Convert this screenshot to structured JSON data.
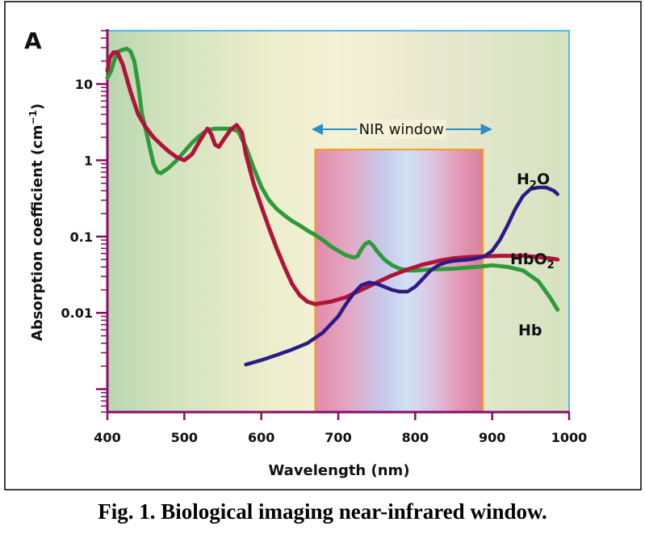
{
  "panel_label": "A",
  "caption": "Fig. 1.  Biological imaging near-infrared window.",
  "nir_label": "NIR window",
  "chart_data": {
    "type": "line",
    "x_label": "Wavelength (nm)",
    "y_label_main": "Absorption coefficient (cm",
    "y_label_sup": "−1",
    "y_label_end": ")",
    "y_scale": "log",
    "xlim": [
      400,
      1000
    ],
    "ylim": [
      0.0005,
      50
    ],
    "x_ticks": [
      "400",
      "500",
      "600",
      "700",
      "800",
      "900",
      "1000"
    ],
    "y_ticks": [
      {
        "v": 10,
        "label": "10"
      },
      {
        "v": 1,
        "label": "1"
      },
      {
        "v": 0.1,
        "label": "0.1"
      },
      {
        "v": 0.01,
        "label": "0.01"
      }
    ],
    "nir_window": [
      670,
      888
    ],
    "colors": {
      "Hb": "#2e9a3a",
      "HbO2": "#b0143a",
      "H2O": "#2c1a86",
      "axis": "#8b0a6a",
      "plot_border": "#55b8e6",
      "window_border": "#f0a020"
    },
    "series": [
      {
        "name": "Hb",
        "label_main": "Hb",
        "label_sub": "",
        "points": [
          [
            400,
            12
          ],
          [
            405,
            15
          ],
          [
            410,
            22
          ],
          [
            415,
            27
          ],
          [
            420,
            28
          ],
          [
            425,
            29
          ],
          [
            430,
            27
          ],
          [
            435,
            20
          ],
          [
            440,
            10
          ],
          [
            445,
            4
          ],
          [
            450,
            2.5
          ],
          [
            455,
            1.5
          ],
          [
            460,
            0.9
          ],
          [
            465,
            0.7
          ],
          [
            470,
            0.68
          ],
          [
            480,
            0.8
          ],
          [
            490,
            1.0
          ],
          [
            500,
            1.3
          ],
          [
            510,
            1.7
          ],
          [
            520,
            2.1
          ],
          [
            530,
            2.5
          ],
          [
            540,
            2.6
          ],
          [
            550,
            2.6
          ],
          [
            560,
            2.6
          ],
          [
            570,
            2.4
          ],
          [
            580,
            1.5
          ],
          [
            590,
            0.8
          ],
          [
            600,
            0.45
          ],
          [
            610,
            0.3
          ],
          [
            620,
            0.23
          ],
          [
            630,
            0.19
          ],
          [
            640,
            0.16
          ],
          [
            650,
            0.14
          ],
          [
            660,
            0.12
          ],
          [
            670,
            0.105
          ],
          [
            680,
            0.09
          ],
          [
            690,
            0.075
          ],
          [
            700,
            0.065
          ],
          [
            710,
            0.057
          ],
          [
            720,
            0.053
          ],
          [
            725,
            0.055
          ],
          [
            730,
            0.068
          ],
          [
            735,
            0.08
          ],
          [
            740,
            0.085
          ],
          [
            745,
            0.077
          ],
          [
            750,
            0.065
          ],
          [
            760,
            0.05
          ],
          [
            770,
            0.042
          ],
          [
            780,
            0.038
          ],
          [
            790,
            0.036
          ],
          [
            800,
            0.036
          ],
          [
            820,
            0.037
          ],
          [
            850,
            0.038
          ],
          [
            880,
            0.04
          ],
          [
            900,
            0.042
          ],
          [
            920,
            0.04
          ],
          [
            940,
            0.036
          ],
          [
            960,
            0.026
          ],
          [
            975,
            0.016
          ],
          [
            985,
            0.011
          ]
        ]
      },
      {
        "name": "HbO2",
        "label_main": "HbO",
        "label_sub": "2",
        "points": [
          [
            400,
            15
          ],
          [
            403,
            22
          ],
          [
            408,
            26
          ],
          [
            413,
            26
          ],
          [
            420,
            18
          ],
          [
            430,
            8
          ],
          [
            440,
            4
          ],
          [
            450,
            2.7
          ],
          [
            460,
            2.0
          ],
          [
            470,
            1.6
          ],
          [
            480,
            1.3
          ],
          [
            490,
            1.1
          ],
          [
            500,
            1.0
          ],
          [
            510,
            1.2
          ],
          [
            520,
            1.8
          ],
          [
            530,
            2.6
          ],
          [
            535,
            2.2
          ],
          [
            540,
            1.6
          ],
          [
            545,
            1.5
          ],
          [
            550,
            1.8
          ],
          [
            560,
            2.5
          ],
          [
            568,
            2.9
          ],
          [
            575,
            2.3
          ],
          [
            580,
            1.2
          ],
          [
            590,
            0.5
          ],
          [
            600,
            0.25
          ],
          [
            610,
            0.13
          ],
          [
            620,
            0.07
          ],
          [
            630,
            0.04
          ],
          [
            640,
            0.024
          ],
          [
            650,
            0.017
          ],
          [
            660,
            0.014
          ],
          [
            670,
            0.013
          ],
          [
            690,
            0.014
          ],
          [
            710,
            0.016
          ],
          [
            730,
            0.02
          ],
          [
            750,
            0.025
          ],
          [
            770,
            0.031
          ],
          [
            790,
            0.037
          ],
          [
            810,
            0.043
          ],
          [
            830,
            0.048
          ],
          [
            850,
            0.052
          ],
          [
            870,
            0.054
          ],
          [
            890,
            0.055
          ],
          [
            910,
            0.056
          ],
          [
            940,
            0.056
          ],
          [
            960,
            0.054
          ],
          [
            980,
            0.051
          ],
          [
            985,
            0.05
          ]
        ]
      },
      {
        "name": "H2O",
        "label_main": "H",
        "label_sub": "2",
        "label_end": "O",
        "points": [
          [
            580,
            0.0021
          ],
          [
            600,
            0.0024
          ],
          [
            620,
            0.0028
          ],
          [
            640,
            0.0033
          ],
          [
            660,
            0.004
          ],
          [
            680,
            0.0055
          ],
          [
            700,
            0.009
          ],
          [
            710,
            0.013
          ],
          [
            720,
            0.018
          ],
          [
            730,
            0.023
          ],
          [
            740,
            0.025
          ],
          [
            750,
            0.024
          ],
          [
            760,
            0.022
          ],
          [
            770,
            0.02
          ],
          [
            780,
            0.019
          ],
          [
            790,
            0.019
          ],
          [
            800,
            0.022
          ],
          [
            810,
            0.028
          ],
          [
            820,
            0.036
          ],
          [
            830,
            0.042
          ],
          [
            840,
            0.046
          ],
          [
            850,
            0.048
          ],
          [
            860,
            0.049
          ],
          [
            870,
            0.05
          ],
          [
            880,
            0.052
          ],
          [
            890,
            0.055
          ],
          [
            900,
            0.065
          ],
          [
            910,
            0.09
          ],
          [
            920,
            0.14
          ],
          [
            930,
            0.23
          ],
          [
            940,
            0.34
          ],
          [
            950,
            0.42
          ],
          [
            960,
            0.44
          ],
          [
            970,
            0.44
          ],
          [
            980,
            0.4
          ],
          [
            985,
            0.36
          ]
        ]
      }
    ]
  }
}
